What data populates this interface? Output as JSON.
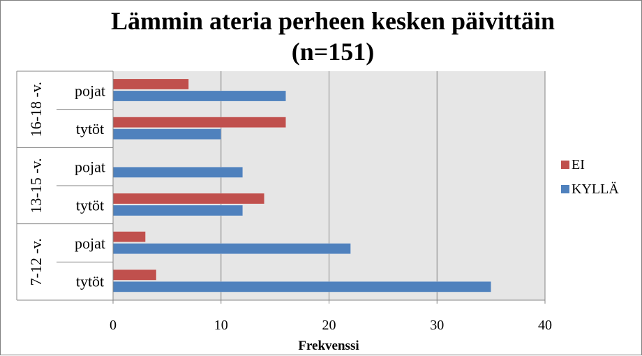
{
  "chart_data": {
    "type": "bar",
    "orientation": "horizontal",
    "title": "Lämmin ateria perheen kesken päivittäin",
    "subtitle": "(n=151)",
    "xlabel": "Frekvenssi",
    "ylabel": "",
    "xlim": [
      0,
      40
    ],
    "xticks": [
      "0",
      "10",
      "20",
      "30",
      "40"
    ],
    "grid": true,
    "legend_position": "right",
    "groups": [
      {
        "label": "16-18 -v.",
        "categories": [
          "pojat",
          "tytöt"
        ]
      },
      {
        "label": "13-15 -v.",
        "categories": [
          "pojat",
          "tytöt"
        ]
      },
      {
        "label": "7-12 -v.",
        "categories": [
          "pojat",
          "tytöt"
        ]
      }
    ],
    "series": [
      {
        "name": "EI",
        "color": "#c0504d",
        "values": [
          7,
          16,
          0,
          14,
          3,
          4
        ]
      },
      {
        "name": "KYLLÄ",
        "color": "#4f81bd",
        "values": [
          16,
          10,
          12,
          12,
          22,
          35
        ]
      }
    ],
    "colors": {
      "plot_background": "#e6e6e6",
      "gridline": "#868686"
    }
  }
}
